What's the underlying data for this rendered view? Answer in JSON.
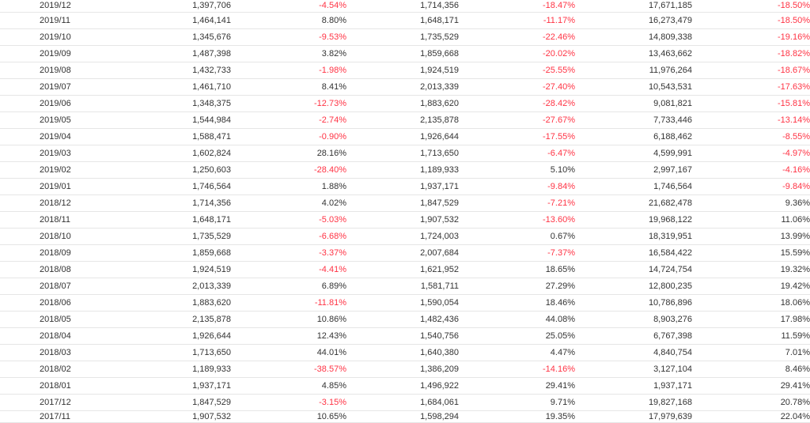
{
  "table": {
    "rows": [
      {
        "month": "2019/12",
        "a": "1,397,706",
        "a_pct": "-4.54%",
        "b": "1,714,356",
        "b_pct": "-18.47%",
        "c": "17,671,185",
        "c_pct": "-18.50%"
      },
      {
        "month": "2019/11",
        "a": "1,464,141",
        "a_pct": "8.80%",
        "b": "1,648,171",
        "b_pct": "-11.17%",
        "c": "16,273,479",
        "c_pct": "-18.50%"
      },
      {
        "month": "2019/10",
        "a": "1,345,676",
        "a_pct": "-9.53%",
        "b": "1,735,529",
        "b_pct": "-22.46%",
        "c": "14,809,338",
        "c_pct": "-19.16%"
      },
      {
        "month": "2019/09",
        "a": "1,487,398",
        "a_pct": "3.82%",
        "b": "1,859,668",
        "b_pct": "-20.02%",
        "c": "13,463,662",
        "c_pct": "-18.82%"
      },
      {
        "month": "2019/08",
        "a": "1,432,733",
        "a_pct": "-1.98%",
        "b": "1,924,519",
        "b_pct": "-25.55%",
        "c": "11,976,264",
        "c_pct": "-18.67%"
      },
      {
        "month": "2019/07",
        "a": "1,461,710",
        "a_pct": "8.41%",
        "b": "2,013,339",
        "b_pct": "-27.40%",
        "c": "10,543,531",
        "c_pct": "-17.63%"
      },
      {
        "month": "2019/06",
        "a": "1,348,375",
        "a_pct": "-12.73%",
        "b": "1,883,620",
        "b_pct": "-28.42%",
        "c": "9,081,821",
        "c_pct": "-15.81%"
      },
      {
        "month": "2019/05",
        "a": "1,544,984",
        "a_pct": "-2.74%",
        "b": "2,135,878",
        "b_pct": "-27.67%",
        "c": "7,733,446",
        "c_pct": "-13.14%"
      },
      {
        "month": "2019/04",
        "a": "1,588,471",
        "a_pct": "-0.90%",
        "b": "1,926,644",
        "b_pct": "-17.55%",
        "c": "6,188,462",
        "c_pct": "-8.55%"
      },
      {
        "month": "2019/03",
        "a": "1,602,824",
        "a_pct": "28.16%",
        "b": "1,713,650",
        "b_pct": "-6.47%",
        "c": "4,599,991",
        "c_pct": "-4.97%"
      },
      {
        "month": "2019/02",
        "a": "1,250,603",
        "a_pct": "-28.40%",
        "b": "1,189,933",
        "b_pct": "5.10%",
        "c": "2,997,167",
        "c_pct": "-4.16%"
      },
      {
        "month": "2019/01",
        "a": "1,746,564",
        "a_pct": "1.88%",
        "b": "1,937,171",
        "b_pct": "-9.84%",
        "c": "1,746,564",
        "c_pct": "-9.84%"
      },
      {
        "month": "2018/12",
        "a": "1,714,356",
        "a_pct": "4.02%",
        "b": "1,847,529",
        "b_pct": "-7.21%",
        "c": "21,682,478",
        "c_pct": "9.36%"
      },
      {
        "month": "2018/11",
        "a": "1,648,171",
        "a_pct": "-5.03%",
        "b": "1,907,532",
        "b_pct": "-13.60%",
        "c": "19,968,122",
        "c_pct": "11.06%"
      },
      {
        "month": "2018/10",
        "a": "1,735,529",
        "a_pct": "-6.68%",
        "b": "1,724,003",
        "b_pct": "0.67%",
        "c": "18,319,951",
        "c_pct": "13.99%"
      },
      {
        "month": "2018/09",
        "a": "1,859,668",
        "a_pct": "-3.37%",
        "b": "2,007,684",
        "b_pct": "-7.37%",
        "c": "16,584,422",
        "c_pct": "15.59%"
      },
      {
        "month": "2018/08",
        "a": "1,924,519",
        "a_pct": "-4.41%",
        "b": "1,621,952",
        "b_pct": "18.65%",
        "c": "14,724,754",
        "c_pct": "19.32%"
      },
      {
        "month": "2018/07",
        "a": "2,013,339",
        "a_pct": "6.89%",
        "b": "1,581,711",
        "b_pct": "27.29%",
        "c": "12,800,235",
        "c_pct": "19.42%"
      },
      {
        "month": "2018/06",
        "a": "1,883,620",
        "a_pct": "-11.81%",
        "b": "1,590,054",
        "b_pct": "18.46%",
        "c": "10,786,896",
        "c_pct": "18.06%"
      },
      {
        "month": "2018/05",
        "a": "2,135,878",
        "a_pct": "10.86%",
        "b": "1,482,436",
        "b_pct": "44.08%",
        "c": "8,903,276",
        "c_pct": "17.98%"
      },
      {
        "month": "2018/04",
        "a": "1,926,644",
        "a_pct": "12.43%",
        "b": "1,540,756",
        "b_pct": "25.05%",
        "c": "6,767,398",
        "c_pct": "11.59%"
      },
      {
        "month": "2018/03",
        "a": "1,713,650",
        "a_pct": "44.01%",
        "b": "1,640,380",
        "b_pct": "4.47%",
        "c": "4,840,754",
        "c_pct": "7.01%"
      },
      {
        "month": "2018/02",
        "a": "1,189,933",
        "a_pct": "-38.57%",
        "b": "1,386,209",
        "b_pct": "-14.16%",
        "c": "3,127,104",
        "c_pct": "8.46%"
      },
      {
        "month": "2018/01",
        "a": "1,937,171",
        "a_pct": "4.85%",
        "b": "1,496,922",
        "b_pct": "29.41%",
        "c": "1,937,171",
        "c_pct": "29.41%"
      },
      {
        "month": "2017/12",
        "a": "1,847,529",
        "a_pct": "-3.15%",
        "b": "1,684,061",
        "b_pct": "9.71%",
        "c": "19,827,168",
        "c_pct": "20.78%"
      },
      {
        "month": "2017/11",
        "a": "1,907,532",
        "a_pct": "10.65%",
        "b": "1,598,294",
        "b_pct": "19.35%",
        "c": "17,979,639",
        "c_pct": "22.04%"
      }
    ]
  },
  "colors": {
    "text": "#333333",
    "negative": "#ff3344",
    "row_border": "#e6e6e6"
  }
}
